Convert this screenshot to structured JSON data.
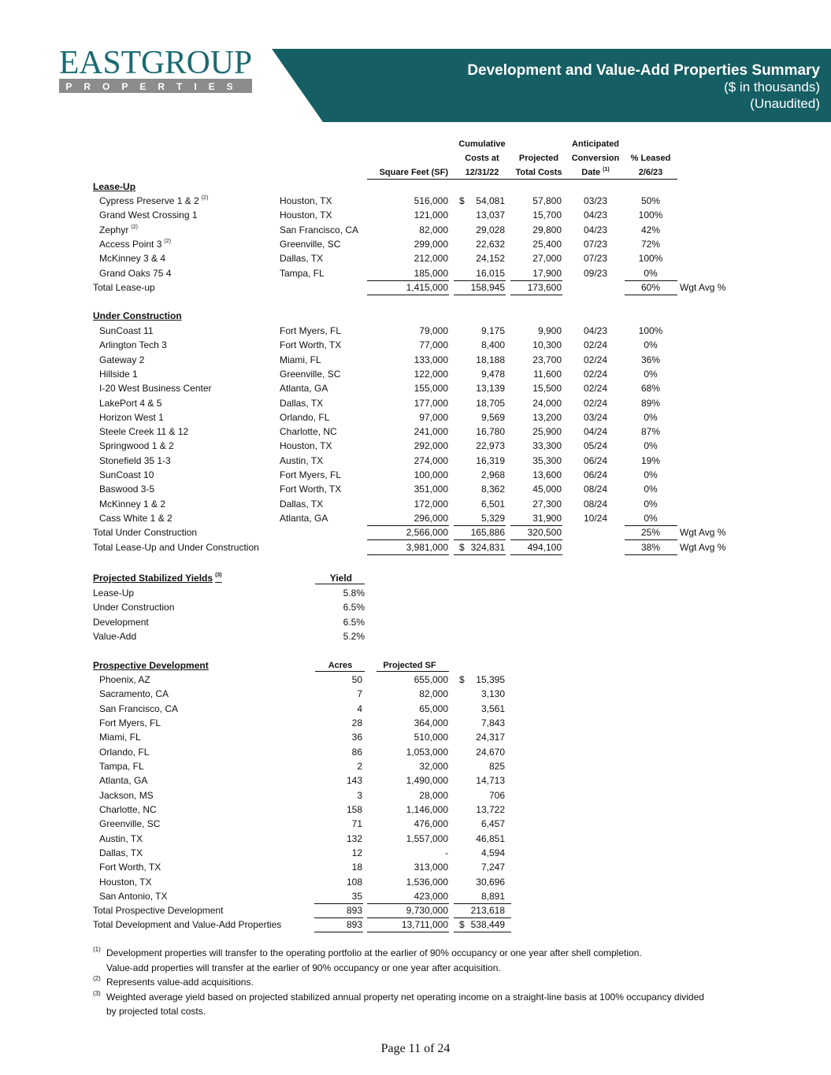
{
  "header": {
    "logo_name": "EASTGROUP",
    "logo_sub": "PROPERTIES",
    "title": "Development and Value-Add Properties Summary",
    "subtitle": [
      "($ in thousands)",
      "(Unaudited)"
    ]
  },
  "columns": {
    "sf": {
      "lines": [
        "Square Feet (SF)"
      ]
    },
    "c": {
      "lines": [
        "Cumulative",
        "Costs at",
        "12/31/22"
      ]
    },
    "pc": {
      "lines": [
        "Projected",
        "Total Costs"
      ]
    },
    "d": {
      "lines": [
        "Anticipated",
        "Conversion",
        "Date"
      ],
      "note": "(1)"
    },
    "l": {
      "lines": [
        "% Leased",
        "2/6/23"
      ]
    }
  },
  "lease_up": {
    "title": "Lease-Up",
    "rows": [
      {
        "n": "Cypress Preserve 1 & 2",
        "note": "(2)",
        "loc": "Houston, TX",
        "sf": "516,000",
        "cur": "$",
        "c": "54,081",
        "pc": "57,800",
        "d": "03/23",
        "l": "50%"
      },
      {
        "n": "Grand West Crossing 1",
        "loc": "Houston, TX",
        "sf": "121,000",
        "c": "13,037",
        "pc": "15,700",
        "d": "04/23",
        "l": "100%"
      },
      {
        "n": "Zephyr",
        "note": "(2)",
        "loc": "San Francisco, CA",
        "sf": "82,000",
        "c": "29,028",
        "pc": "29,800",
        "d": "04/23",
        "l": "42%"
      },
      {
        "n": "Access Point 3",
        "note": "(2)",
        "loc": "Greenville, SC",
        "sf": "299,000",
        "c": "22,632",
        "pc": "25,400",
        "d": "07/23",
        "l": "72%"
      },
      {
        "n": "McKinney 3 & 4",
        "loc": "Dallas, TX",
        "sf": "212,000",
        "c": "24,152",
        "pc": "27,000",
        "d": "07/23",
        "l": "100%"
      },
      {
        "n": "Grand Oaks 75 4",
        "loc": "Tampa, FL",
        "sf": "185,000",
        "c": "16,015",
        "pc": "17,900",
        "d": "09/23",
        "l": "0%"
      }
    ],
    "total": {
      "n": "Total Lease-up",
      "sf": "1,415,000",
      "c": "158,945",
      "pc": "173,600",
      "l": "60%",
      "w": "Wgt Avg %"
    }
  },
  "under_construction": {
    "title": "Under Construction",
    "rows": [
      {
        "n": "SunCoast 11",
        "loc": "Fort Myers, FL",
        "sf": "79,000",
        "c": "9,175",
        "pc": "9,900",
        "d": "04/23",
        "l": "100%"
      },
      {
        "n": "Arlington Tech 3",
        "loc": "Fort Worth, TX",
        "sf": "77,000",
        "c": "8,400",
        "pc": "10,300",
        "d": "02/24",
        "l": "0%"
      },
      {
        "n": "Gateway 2",
        "loc": "Miami, FL",
        "sf": "133,000",
        "c": "18,188",
        "pc": "23,700",
        "d": "02/24",
        "l": "36%"
      },
      {
        "n": "Hillside 1",
        "loc": "Greenville, SC",
        "sf": "122,000",
        "c": "9,478",
        "pc": "11,600",
        "d": "02/24",
        "l": "0%"
      },
      {
        "n": "I-20 West Business Center",
        "loc": "Atlanta, GA",
        "sf": "155,000",
        "c": "13,139",
        "pc": "15,500",
        "d": "02/24",
        "l": "68%"
      },
      {
        "n": "LakePort 4 & 5",
        "loc": "Dallas, TX",
        "sf": "177,000",
        "c": "18,705",
        "pc": "24,000",
        "d": "02/24",
        "l": "89%"
      },
      {
        "n": "Horizon West 1",
        "loc": "Orlando, FL",
        "sf": "97,000",
        "c": "9,569",
        "pc": "13,200",
        "d": "03/24",
        "l": "0%"
      },
      {
        "n": "Steele Creek 11 & 12",
        "loc": "Charlotte, NC",
        "sf": "241,000",
        "c": "16,780",
        "pc": "25,900",
        "d": "04/24",
        "l": "87%"
      },
      {
        "n": "Springwood 1 & 2",
        "loc": "Houston, TX",
        "sf": "292,000",
        "c": "22,973",
        "pc": "33,300",
        "d": "05/24",
        "l": "0%"
      },
      {
        "n": "Stonefield 35 1-3",
        "loc": "Austin, TX",
        "sf": "274,000",
        "c": "16,319",
        "pc": "35,300",
        "d": "06/24",
        "l": "19%"
      },
      {
        "n": "SunCoast 10",
        "loc": "Fort Myers, FL",
        "sf": "100,000",
        "c": "2,968",
        "pc": "13,600",
        "d": "06/24",
        "l": "0%"
      },
      {
        "n": "Baswood 3-5",
        "loc": "Fort Worth, TX",
        "sf": "351,000",
        "c": "8,362",
        "pc": "45,000",
        "d": "08/24",
        "l": "0%"
      },
      {
        "n": "McKinney 1 & 2",
        "loc": "Dallas, TX",
        "sf": "172,000",
        "c": "6,501",
        "pc": "27,300",
        "d": "08/24",
        "l": "0%"
      },
      {
        "n": "Cass White 1 & 2",
        "loc": "Atlanta, GA",
        "sf": "296,000",
        "c": "5,329",
        "pc": "31,900",
        "d": "10/24",
        "l": "0%"
      }
    ],
    "total": {
      "n": "Total Under Construction",
      "sf": "2,566,000",
      "c": "165,886",
      "pc": "320,500",
      "l": "25%",
      "w": "Wgt Avg %"
    },
    "grand_total": {
      "n": "Total Lease-Up and Under Construction",
      "sf": "3,981,000",
      "cur": "$",
      "c": "324,831",
      "pc": "494,100",
      "l": "38%",
      "w": "Wgt Avg %"
    }
  },
  "yields": {
    "title": "Projected Stabilized Yields",
    "note": "(3)",
    "column": "Yield",
    "rows": [
      {
        "n": "Lease-Up",
        "y": "5.8%"
      },
      {
        "n": "Under Construction",
        "y": "6.5%"
      },
      {
        "n": "Development",
        "y": "6.5%"
      },
      {
        "n": "Value-Add",
        "y": "5.2%"
      }
    ]
  },
  "prospective": {
    "title": "Prospective Development",
    "columns": {
      "a": "Acres",
      "sf": "Projected SF"
    },
    "rows": [
      {
        "n": "Phoenix, AZ",
        "a": "50",
        "sf": "655,000",
        "cur": "$",
        "c": "15,395"
      },
      {
        "n": "Sacramento, CA",
        "a": "7",
        "sf": "82,000",
        "c": "3,130"
      },
      {
        "n": "San Francisco, CA",
        "a": "4",
        "sf": "65,000",
        "c": "3,561"
      },
      {
        "n": "Fort Myers, FL",
        "a": "28",
        "sf": "364,000",
        "c": "7,843"
      },
      {
        "n": "Miami, FL",
        "a": "36",
        "sf": "510,000",
        "c": "24,317"
      },
      {
        "n": "Orlando, FL",
        "a": "86",
        "sf": "1,053,000",
        "c": "24,670"
      },
      {
        "n": "Tampa, FL",
        "a": "2",
        "sf": "32,000",
        "c": "825"
      },
      {
        "n": "Atlanta, GA",
        "a": "143",
        "sf": "1,490,000",
        "c": "14,713"
      },
      {
        "n": "Jackson, MS",
        "a": "3",
        "sf": "28,000",
        "c": "706"
      },
      {
        "n": "Charlotte, NC",
        "a": "158",
        "sf": "1,146,000",
        "c": "13,722"
      },
      {
        "n": "Greenville, SC",
        "a": "71",
        "sf": "476,000",
        "c": "6,457"
      },
      {
        "n": "Austin, TX",
        "a": "132",
        "sf": "1,557,000",
        "c": "46,851"
      },
      {
        "n": "Dallas, TX",
        "a": "12",
        "sf": "-",
        "c": "4,594"
      },
      {
        "n": "Fort Worth, TX",
        "a": "18",
        "sf": "313,000",
        "c": "7,247"
      },
      {
        "n": "Houston, TX",
        "a": "108",
        "sf": "1,536,000",
        "c": "30,696"
      },
      {
        "n": "San Antonio, TX",
        "a": "35",
        "sf": "423,000",
        "c": "8,891"
      }
    ],
    "total": {
      "n": "Total Prospective Development",
      "a": "893",
      "sf": "9,730,000",
      "c": "213,618"
    },
    "grand_total": {
      "n": "Total Development and Value-Add Properties",
      "a": "893",
      "sf": "13,711,000",
      "cur": "$",
      "c": "538,449"
    }
  },
  "footnotes": [
    {
      "mark": "(1)",
      "lines": [
        "Development properties will transfer to the operating portfolio at the earlier of 90% occupancy or one year after shell completion.",
        "Value-add properties will transfer at the earlier of 90% occupancy or one year after acquisition."
      ]
    },
    {
      "mark": "(2)",
      "lines": [
        "Represents value-add acquisitions."
      ]
    },
    {
      "mark": "(3)",
      "lines": [
        "Weighted average yield based on projected stabilized annual property net operating income on a straight-line basis at 100% occupancy divided",
        "by projected total costs."
      ]
    }
  ],
  "page_number": "Page 11 of 24"
}
